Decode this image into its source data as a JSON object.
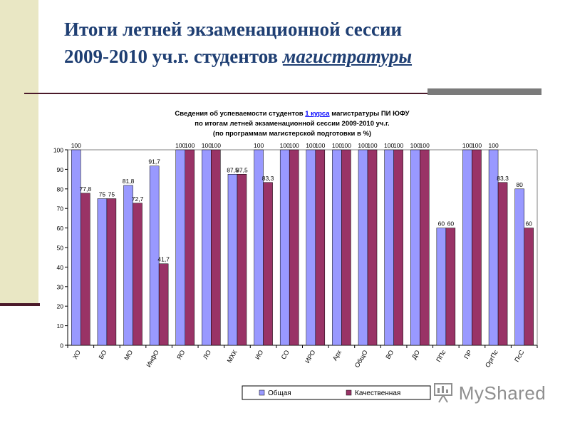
{
  "slide": {
    "title_line1": "Итоги летней экзаменационной сессии",
    "title_line2_prefix": "2009-2010 уч.г. студентов ",
    "title_line2_emphasis": "магистратуры"
  },
  "watermark": {
    "text": "MyShared",
    "icon": "presentation-board-icon"
  },
  "colors": {
    "series_total": "#9999ff",
    "series_quality": "#993366",
    "title": "#1f3f73",
    "link": "#0000ff"
  },
  "chart_data": {
    "type": "bar",
    "title_line1_prefix": "Сведения об успеваемости студентов ",
    "title_line1_link": "1 курса",
    "title_line1_suffix": " магистратуры ПИ ЮФУ",
    "title_line2": "по итогам летней экзаменационной сессии 2009-2010 уч.г.",
    "title_line3": "(по программам магистерской подготовки в %)",
    "categories": [
      "ХО",
      "БО",
      "МО",
      "ИнфО",
      "ЯО",
      "ЛО",
      "МХК",
      "ИО",
      "СО",
      "ИРО",
      "Арх",
      "ОбщО",
      "ВО",
      "ДО",
      "ППс",
      "ПР",
      "ОргПс",
      "ПсС"
    ],
    "series": [
      {
        "name": "Общая",
        "values": [
          100,
          75,
          81.8,
          91.7,
          100,
          100,
          87.5,
          100,
          100,
          100,
          100,
          100,
          100,
          100,
          60,
          100,
          100,
          80
        ]
      },
      {
        "name": "Качественная",
        "values": [
          77.8,
          75,
          72.7,
          41.7,
          100,
          100,
          87.5,
          83.3,
          100,
          100,
          100,
          100,
          100,
          100,
          60,
          100,
          83.3,
          60
        ]
      }
    ],
    "data_labels": [
      [
        "100",
        "75",
        "81,8",
        "91,7",
        "100",
        "100",
        "87,5",
        "100",
        "100",
        "100",
        "100",
        "100",
        "100",
        "100",
        "60",
        "100",
        "100",
        "80"
      ],
      [
        "77,8",
        "75",
        "72,7",
        "41,7",
        "100",
        "100",
        "87,5",
        "83,3",
        "100",
        "100",
        "100",
        "100",
        "100",
        "100",
        "60",
        "100",
        "83,3",
        "60"
      ]
    ],
    "y_ticks": [
      "0",
      "10",
      "20",
      "30",
      "40",
      "50",
      "60",
      "70",
      "80",
      "90",
      "100"
    ],
    "ylim": [
      0,
      100
    ],
    "grid": false,
    "legend_position": "bottom"
  }
}
